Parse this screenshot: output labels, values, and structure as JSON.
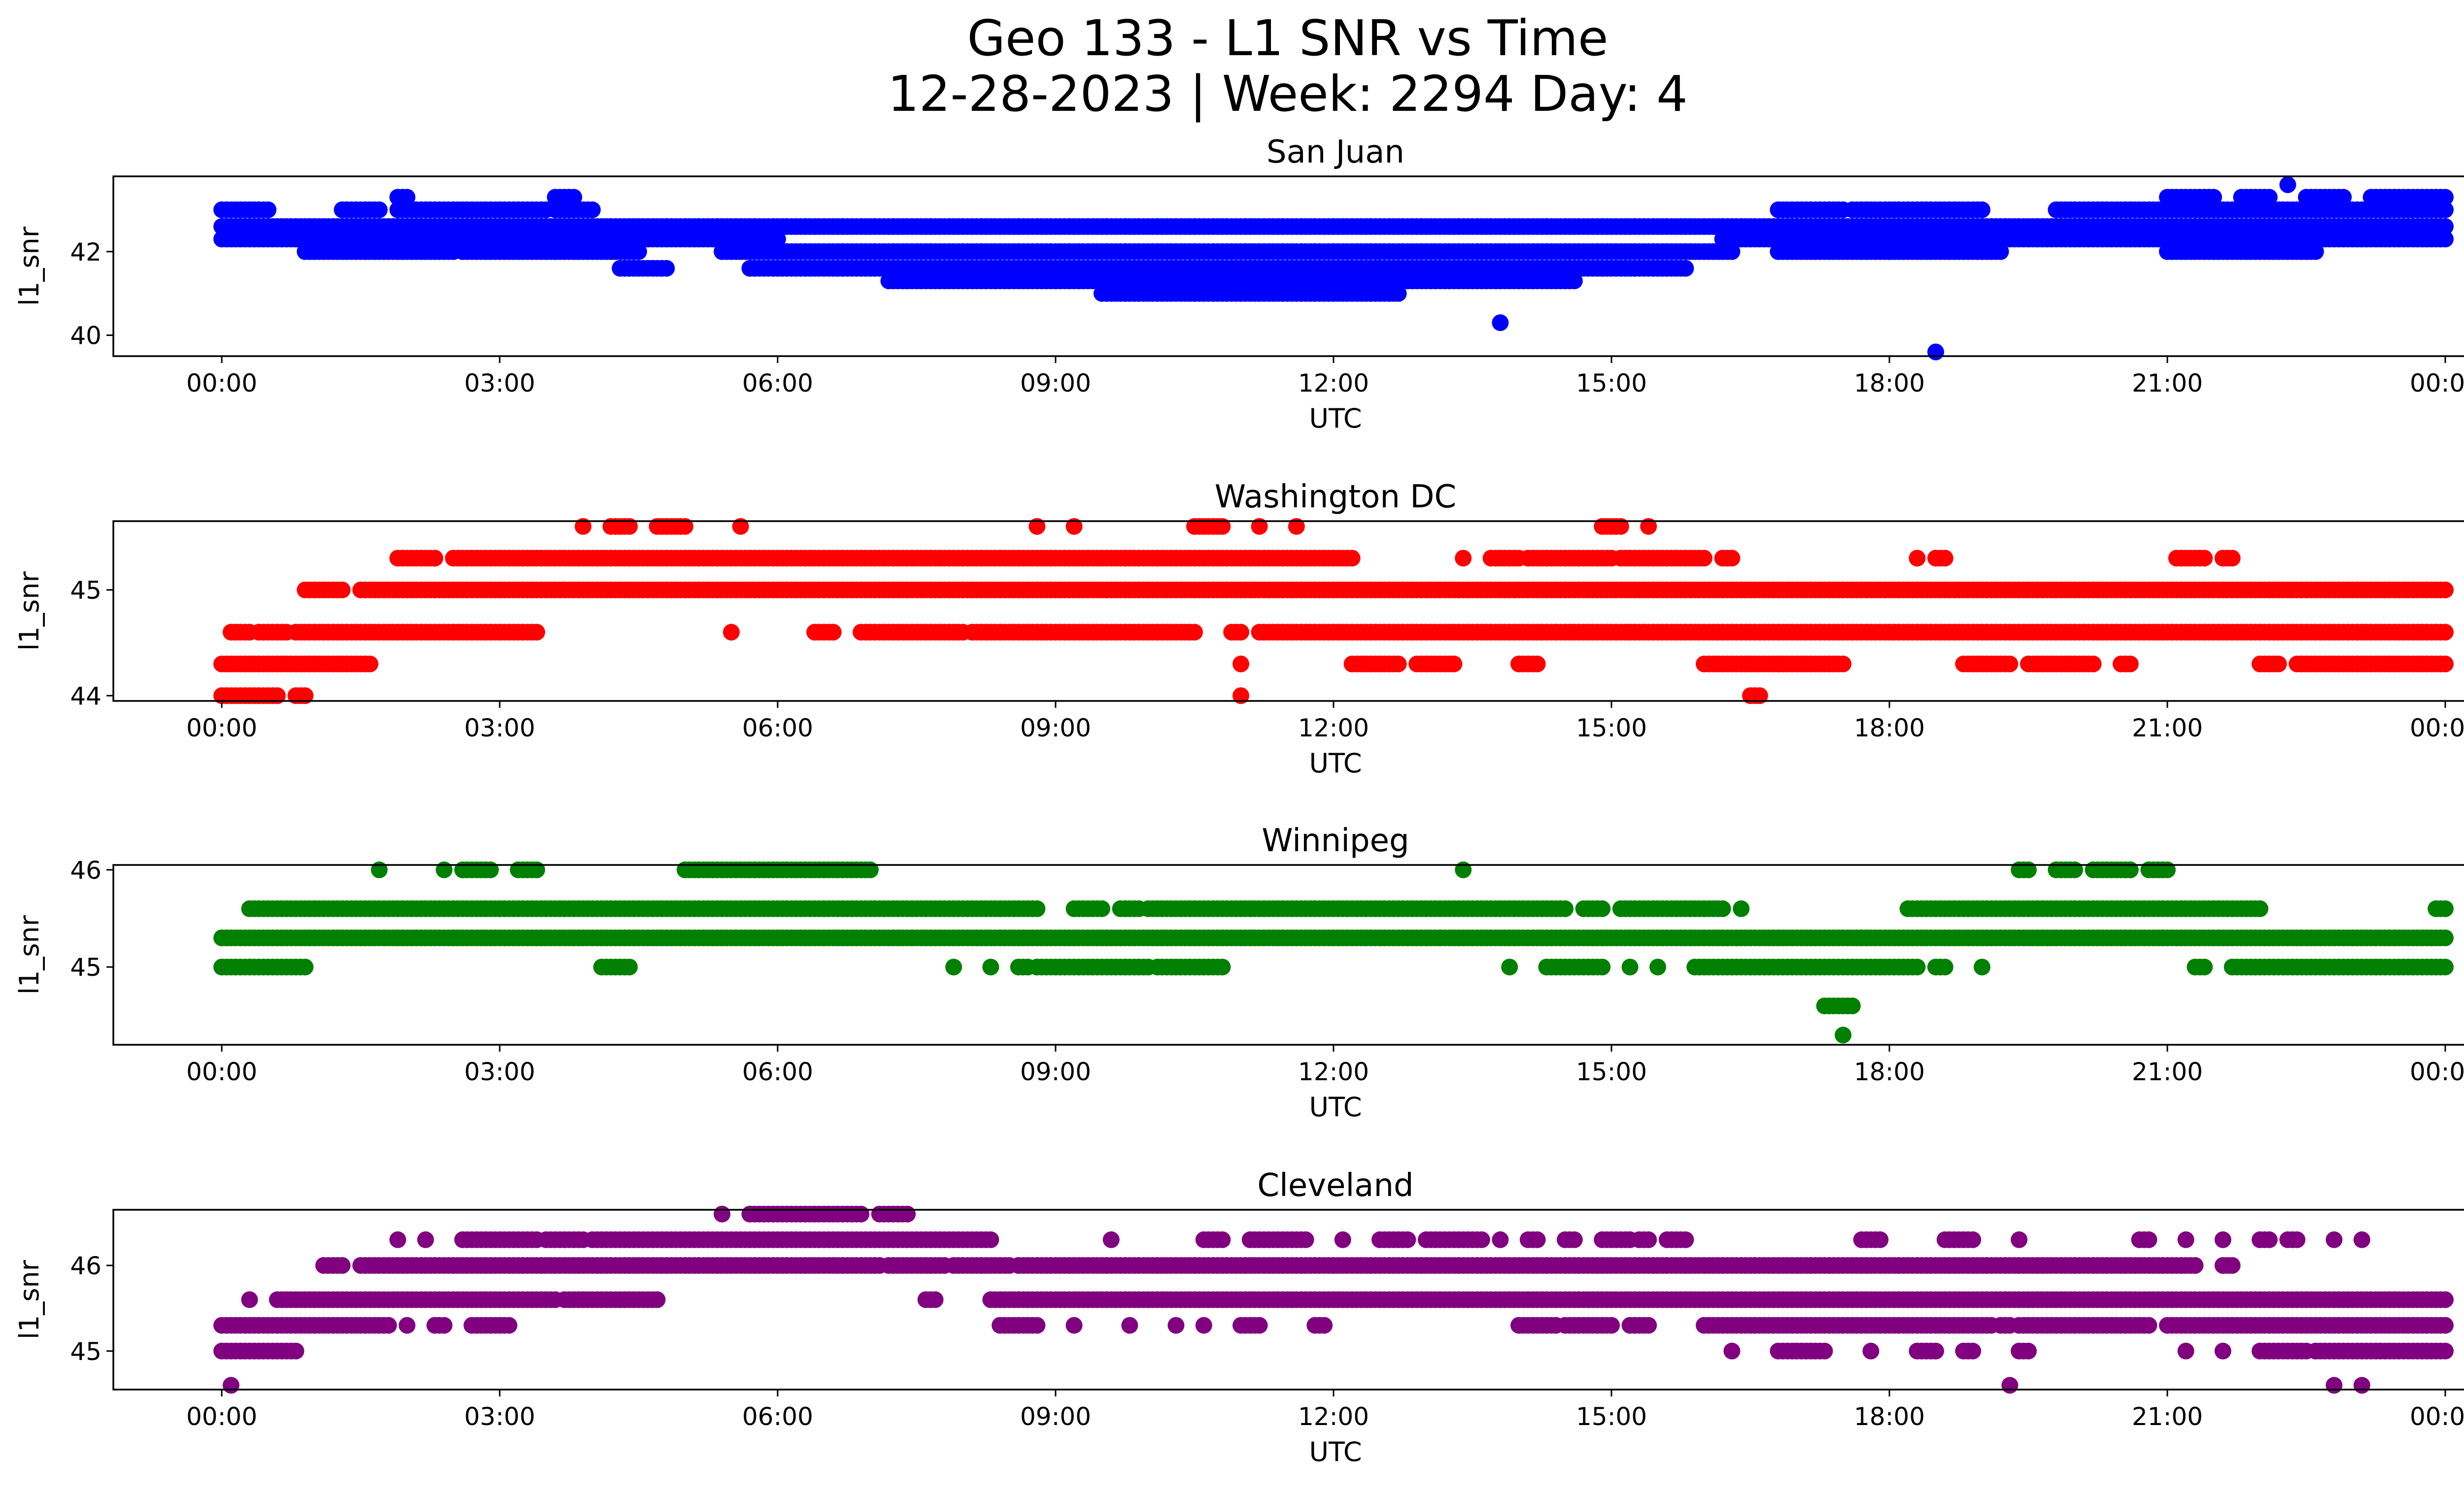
{
  "figure": {
    "title_line1": "Geo 133 - L1 SNR vs Time",
    "title_line2": "12-28-2023 | Week: 2294 Day: 4"
  },
  "chart_data": [
    {
      "type": "scatter",
      "title": "San Juan",
      "xlabel": "UTC",
      "ylabel": "l1_snr",
      "color": "#0000ff",
      "xlim": [
        "00:00",
        "24:00"
      ],
      "ylim": [
        39.5,
        43.8
      ],
      "x_ticks": [
        "00:00",
        "03:00",
        "06:00",
        "09:00",
        "12:00",
        "15:00",
        "18:00",
        "21:00",
        "00:00"
      ],
      "y_ticks": [
        40,
        42
      ],
      "levels": [
        39.6,
        40.3,
        41.0,
        41.3,
        41.6,
        42.0,
        42.3,
        42.6,
        43.0,
        43.3,
        43.6
      ],
      "points": {
        "42.6": [
          [
            0.0,
            24.0
          ]
        ],
        "42.3": [
          [
            0.0,
            6.0
          ],
          [
            16.2,
            24.0
          ]
        ],
        "43.0": [
          [
            0.0,
            0.5
          ],
          [
            1.3,
            1.7
          ],
          [
            1.9,
            3.5
          ],
          [
            3.6,
            4.0
          ],
          [
            16.8,
            17.5
          ],
          [
            17.6,
            19.0
          ],
          [
            19.8,
            24.0
          ]
        ],
        "42.0": [
          [
            0.9,
            2.5
          ],
          [
            2.6,
            3.6
          ],
          [
            3.6,
            4.5
          ],
          [
            5.4,
            16.3
          ],
          [
            16.8,
            18.0
          ],
          [
            18.0,
            19.2
          ],
          [
            21.0,
            22.6
          ]
        ],
        "41.6": [
          [
            4.3,
            4.8
          ],
          [
            5.7,
            15.8
          ]
        ],
        "41.3": [
          [
            7.2,
            14.6
          ]
        ],
        "41.0": [
          [
            9.5,
            12.7
          ]
        ],
        "43.3": [
          [
            1.9,
            2.0
          ],
          [
            3.6,
            3.8
          ],
          [
            21.0,
            21.5
          ],
          [
            21.8,
            22.1
          ],
          [
            22.5,
            22.9
          ],
          [
            23.2,
            24.0
          ]
        ],
        "43.6": [
          [
            22.3,
            22.3
          ]
        ],
        "40.3": [
          [
            13.8,
            13.8
          ]
        ],
        "39.6": [
          [
            18.5,
            18.5
          ]
        ]
      }
    },
    {
      "type": "scatter",
      "title": "Washington DC",
      "xlabel": "UTC",
      "ylabel": "l1_snr",
      "color": "#ff0000",
      "xlim": [
        "00:00",
        "24:00"
      ],
      "ylim": [
        43.95,
        45.65
      ],
      "x_ticks": [
        "00:00",
        "03:00",
        "06:00",
        "09:00",
        "12:00",
        "15:00",
        "18:00",
        "21:00",
        "00:00"
      ],
      "y_ticks": [
        44,
        45
      ],
      "levels": [
        44.0,
        44.3,
        44.6,
        45.0,
        45.3,
        45.6
      ],
      "points": {
        "44.0": [
          [
            0.0,
            0.6
          ],
          [
            0.8,
            0.9
          ],
          [
            11.0,
            11.0
          ],
          [
            16.5,
            16.6
          ]
        ],
        "44.3": [
          [
            0.0,
            1.6
          ],
          [
            11.0,
            11.0
          ],
          [
            12.2,
            12.7
          ],
          [
            12.9,
            13.3
          ],
          [
            14.0,
            14.2
          ],
          [
            16.0,
            16.8
          ],
          [
            16.8,
            17.5
          ],
          [
            18.8,
            19.3
          ],
          [
            19.5,
            20.2
          ],
          [
            20.5,
            20.6
          ],
          [
            22.0,
            22.2
          ],
          [
            22.4,
            24.0
          ]
        ],
        "44.6": [
          [
            0.1,
            0.3
          ],
          [
            0.4,
            0.7
          ],
          [
            0.8,
            3.4
          ],
          [
            5.5,
            5.5
          ],
          [
            6.4,
            6.6
          ],
          [
            6.9,
            8.0
          ],
          [
            8.1,
            10.5
          ],
          [
            10.9,
            11.0
          ],
          [
            11.2,
            24.0
          ]
        ],
        "45.0": [
          [
            0.9,
            1.3
          ],
          [
            1.5,
            24.0
          ]
        ],
        "45.3": [
          [
            1.9,
            2.3
          ],
          [
            2.5,
            12.2
          ],
          [
            13.4,
            13.4
          ],
          [
            13.7,
            14.0
          ],
          [
            14.1,
            15.0
          ],
          [
            15.1,
            16.0
          ],
          [
            16.2,
            16.3
          ],
          [
            18.3,
            18.3
          ],
          [
            18.5,
            18.6
          ],
          [
            21.1,
            21.4
          ],
          [
            21.6,
            21.7
          ]
        ],
        "45.6": [
          [
            3.9,
            3.9
          ],
          [
            4.2,
            4.4
          ],
          [
            4.7,
            5.0
          ],
          [
            5.6,
            5.6
          ],
          [
            8.8,
            8.8
          ],
          [
            9.2,
            9.2
          ],
          [
            10.5,
            10.8
          ],
          [
            11.2,
            11.2
          ],
          [
            11.6,
            11.6
          ],
          [
            14.9,
            15.1
          ],
          [
            15.4,
            15.4
          ]
        ]
      }
    },
    {
      "type": "scatter",
      "title": "Winnipeg",
      "xlabel": "UTC",
      "ylabel": "l1_snr",
      "color": "#008000",
      "xlim": [
        "00:00",
        "24:00"
      ],
      "ylim": [
        44.2,
        46.05
      ],
      "x_ticks": [
        "00:00",
        "03:00",
        "06:00",
        "09:00",
        "12:00",
        "15:00",
        "18:00",
        "21:00",
        "00:00"
      ],
      "y_ticks": [
        45,
        46
      ],
      "levels": [
        44.3,
        44.6,
        45.0,
        45.3,
        45.6,
        46.0
      ],
      "points": {
        "45.3": [
          [
            0.0,
            24.0
          ]
        ],
        "45.6": [
          [
            0.3,
            8.8
          ],
          [
            9.2,
            9.5
          ],
          [
            9.7,
            9.9
          ],
          [
            10.0,
            14.5
          ],
          [
            14.7,
            14.9
          ],
          [
            15.1,
            16.2
          ],
          [
            16.4,
            16.4
          ],
          [
            18.2,
            22.0
          ],
          [
            23.9,
            24.0
          ]
        ],
        "45.0": [
          [
            0.0,
            0.9
          ],
          [
            4.1,
            4.4
          ],
          [
            7.9,
            7.9
          ],
          [
            8.3,
            8.3
          ],
          [
            8.6,
            8.7
          ],
          [
            8.8,
            10.0
          ],
          [
            10.1,
            10.8
          ],
          [
            13.9,
            13.9
          ],
          [
            14.3,
            14.9
          ],
          [
            15.2,
            15.2
          ],
          [
            15.5,
            15.5
          ],
          [
            15.9,
            18.3
          ],
          [
            18.5,
            18.6
          ],
          [
            19.0,
            19.0
          ],
          [
            21.3,
            21.4
          ],
          [
            21.7,
            24.0
          ]
        ],
        "46.0": [
          [
            1.7,
            1.7
          ],
          [
            2.4,
            2.4
          ],
          [
            2.6,
            2.9
          ],
          [
            3.2,
            3.4
          ],
          [
            5.0,
            7.0
          ],
          [
            13.4,
            13.4
          ],
          [
            19.4,
            19.5
          ],
          [
            19.8,
            20.0
          ],
          [
            20.2,
            20.6
          ],
          [
            20.8,
            21.0
          ]
        ],
        "44.6": [
          [
            17.3,
            17.6
          ]
        ],
        "44.3": [
          [
            17.5,
            17.5
          ]
        ]
      }
    },
    {
      "type": "scatter",
      "title": "Cleveland",
      "xlabel": "UTC",
      "ylabel": "l1_snr",
      "color": "#800080",
      "xlim": [
        "00:00",
        "24:00"
      ],
      "ylim": [
        44.55,
        46.65
      ],
      "x_ticks": [
        "00:00",
        "03:00",
        "06:00",
        "09:00",
        "12:00",
        "15:00",
        "18:00",
        "21:00",
        "00:00"
      ],
      "y_ticks": [
        45,
        46
      ],
      "levels": [
        44.6,
        45.0,
        45.3,
        45.6,
        46.0,
        46.3,
        46.6
      ],
      "points": {
        "44.6": [
          [
            0.1,
            0.1
          ],
          [
            19.3,
            19.3
          ],
          [
            22.8,
            22.8
          ],
          [
            23.1,
            23.1
          ]
        ],
        "45.0": [
          [
            0.0,
            0.8
          ],
          [
            16.3,
            16.3
          ],
          [
            16.8,
            17.3
          ],
          [
            17.8,
            17.8
          ],
          [
            18.3,
            18.5
          ],
          [
            18.8,
            18.9
          ],
          [
            19.4,
            19.5
          ],
          [
            21.2,
            21.2
          ],
          [
            21.6,
            21.6
          ],
          [
            22.0,
            22.5
          ],
          [
            22.6,
            24.0
          ]
        ],
        "45.3": [
          [
            0.0,
            1.8
          ],
          [
            2.0,
            2.0
          ],
          [
            2.3,
            2.4
          ],
          [
            2.7,
            3.1
          ],
          [
            8.4,
            8.8
          ],
          [
            9.2,
            9.2
          ],
          [
            9.8,
            9.8
          ],
          [
            10.3,
            10.3
          ],
          [
            10.6,
            10.6
          ],
          [
            11.0,
            11.2
          ],
          [
            11.8,
            11.9
          ],
          [
            14.0,
            14.4
          ],
          [
            14.5,
            15.0
          ],
          [
            15.2,
            15.4
          ],
          [
            16.0,
            19.1
          ],
          [
            19.2,
            19.3
          ],
          [
            19.4,
            20.8
          ],
          [
            21.0,
            24.0
          ]
        ],
        "45.6": [
          [
            0.3,
            0.3
          ],
          [
            0.6,
            3.6
          ],
          [
            3.7,
            4.7
          ],
          [
            7.6,
            7.7
          ],
          [
            8.3,
            24.0
          ]
        ],
        "46.0": [
          [
            1.1,
            1.3
          ],
          [
            1.5,
            7.1
          ],
          [
            7.2,
            7.8
          ],
          [
            7.9,
            8.5
          ],
          [
            8.6,
            21.3
          ],
          [
            21.6,
            21.7
          ]
        ],
        "46.3": [
          [
            1.9,
            1.9
          ],
          [
            2.2,
            2.2
          ],
          [
            2.6,
            3.4
          ],
          [
            3.5,
            3.9
          ],
          [
            4.0,
            8.3
          ],
          [
            9.6,
            9.6
          ],
          [
            10.6,
            10.8
          ],
          [
            11.1,
            11.7
          ],
          [
            12.1,
            12.1
          ],
          [
            12.5,
            12.8
          ],
          [
            13.0,
            13.6
          ],
          [
            13.8,
            13.8
          ],
          [
            14.1,
            14.2
          ],
          [
            14.5,
            14.6
          ],
          [
            14.9,
            15.2
          ],
          [
            15.3,
            15.4
          ],
          [
            15.6,
            15.8
          ],
          [
            17.7,
            17.9
          ],
          [
            18.6,
            18.9
          ],
          [
            19.4,
            19.4
          ],
          [
            20.7,
            20.8
          ],
          [
            21.2,
            21.2
          ],
          [
            21.6,
            21.6
          ],
          [
            22.0,
            22.1
          ],
          [
            22.3,
            22.4
          ],
          [
            22.8,
            22.8
          ],
          [
            23.1,
            23.1
          ]
        ],
        "46.6": [
          [
            5.4,
            5.4
          ],
          [
            5.7,
            6.9
          ],
          [
            7.1,
            7.4
          ]
        ]
      }
    }
  ]
}
